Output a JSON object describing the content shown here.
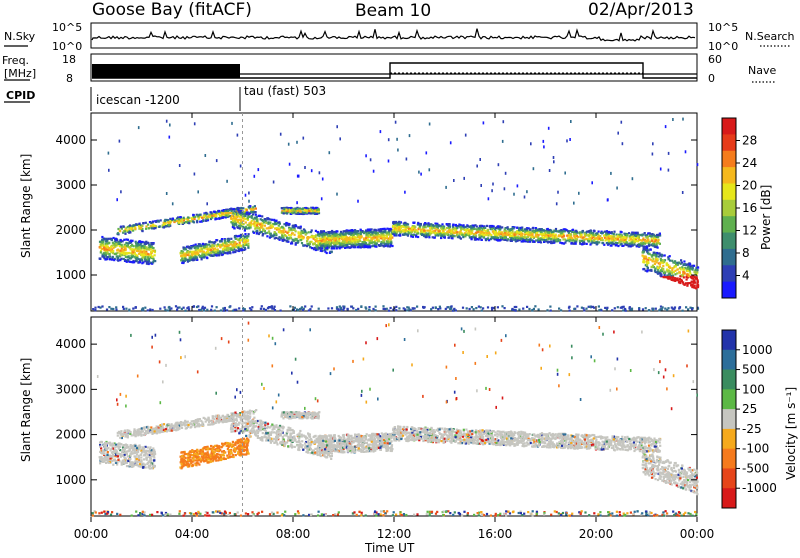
{
  "header": {
    "station": "Goose Bay (fitACF)",
    "beam": "Beam 10",
    "date": "02/Apr/2013"
  },
  "noise_panel": {
    "left_label": "N.Sky",
    "right_label": "N.Search",
    "left_ticks": [
      "10^5",
      "10^0"
    ],
    "right_ticks": [
      "10^5",
      "10^0"
    ]
  },
  "freq_panel": {
    "left_label_line1": "Freq.",
    "left_label_line2": "[MHz]",
    "left_ticks": [
      "18",
      "8"
    ],
    "right_label": "Nave",
    "right_ticks": [
      "60",
      "0"
    ],
    "cpid_label": "CPID"
  },
  "cpid": {
    "mode1": "icescan -1200",
    "mode2": "tau (fast) 503"
  },
  "chart_data": [
    {
      "type": "heatmap",
      "name": "power",
      "ylabel": "Slant Range [km]",
      "yticks": [
        "1000",
        "2000",
        "3000",
        "4000"
      ],
      "ylim": [
        200,
        4600
      ],
      "xlim": [
        0,
        24
      ],
      "colorbar": {
        "label": "Power [dB]",
        "ticks": [
          "4",
          "8",
          "12",
          "16",
          "20",
          "24",
          "28"
        ],
        "colors": [
          "#1a1aff",
          "#2e3fb5",
          "#2f6d8f",
          "#3e8e6d",
          "#5fb04f",
          "#a8cc3a",
          "#e6e61a",
          "#f5b81c",
          "#f57c1c",
          "#e63b1a",
          "#d81a1a"
        ]
      }
    },
    {
      "type": "heatmap",
      "name": "velocity",
      "ylabel": "Slant Range [km]",
      "yticks": [
        "1000",
        "2000",
        "3000",
        "4000"
      ],
      "ylim": [
        200,
        4600
      ],
      "xlim": [
        0,
        24
      ],
      "xticks": [
        "00:00",
        "04:00",
        "08:00",
        "12:00",
        "16:00",
        "20:00",
        "00:00"
      ],
      "xlabel": "Time UT",
      "colorbar": {
        "label": "Velocity [m s⁻¹]",
        "ticks": [
          "1000",
          "500",
          "100",
          "25",
          "-25",
          "-100",
          "-500",
          "-1000"
        ],
        "colors": [
          "#2233aa",
          "#2c6e9a",
          "#3a8c5f",
          "#5cb845",
          "#c6c6c0",
          "#f5a91c",
          "#f57a1c",
          "#e6451a",
          "#d81a1a"
        ]
      }
    }
  ]
}
